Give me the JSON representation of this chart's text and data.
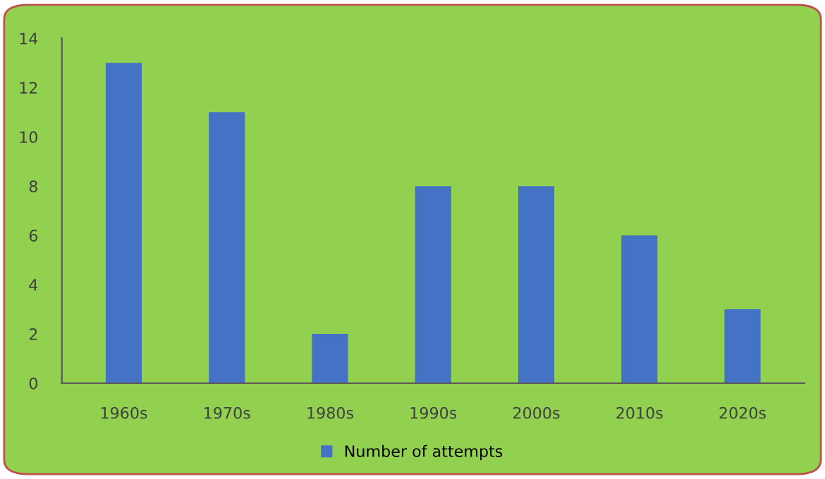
{
  "chart_data": {
    "type": "bar",
    "categories": [
      "1960s",
      "1970s",
      "1980s",
      "1990s",
      "2000s",
      "2010s",
      "2020s"
    ],
    "series": [
      {
        "name": "Number of attempts",
        "color": "#4472c4",
        "values": [
          13,
          11,
          2,
          8,
          8,
          6,
          3
        ]
      }
    ],
    "ylim": [
      0,
      14
    ],
    "yticks": [
      0,
      2,
      4,
      6,
      8,
      10,
      12,
      14
    ],
    "grid": false,
    "legend": "bottom"
  }
}
